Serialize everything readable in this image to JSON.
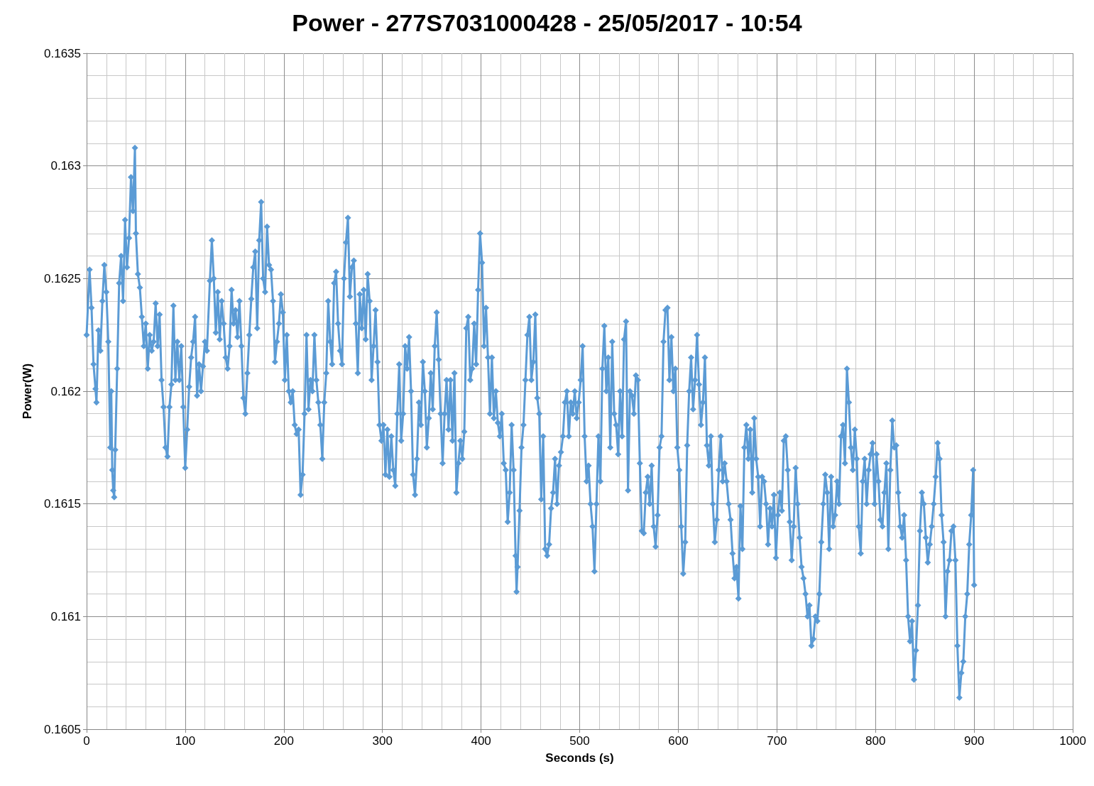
{
  "chart_data": {
    "type": "line",
    "title": "Power - 277S7031000428 - 25/05/2017 - 10:54",
    "xlabel": "Seconds (s)",
    "ylabel": "Power(W)",
    "xlim": [
      0,
      1000
    ],
    "xticks": [
      0,
      100,
      200,
      300,
      400,
      500,
      600,
      700,
      800,
      900,
      1000
    ],
    "ylim": [
      0.1605,
      0.1635
    ],
    "yticks": [
      0.1605,
      0.161,
      0.1615,
      0.162,
      0.1625,
      0.163,
      0.1635
    ],
    "grid": true,
    "marker": "diamond",
    "line_style": "solid",
    "series": [
      {
        "color": "#5b9bd5",
        "x": [
          0,
          3,
          5,
          7,
          9,
          10,
          12,
          14,
          16,
          18,
          20,
          22,
          24,
          25,
          26,
          27,
          28,
          29,
          31,
          33,
          35,
          37,
          39,
          41,
          43,
          45,
          47,
          49,
          50,
          52,
          54,
          56,
          58,
          60,
          62,
          64,
          66,
          68,
          70,
          72,
          74,
          76,
          78,
          80,
          82,
          84,
          86,
          88,
          90,
          92,
          94,
          96,
          98,
          100,
          102,
          104,
          106,
          108,
          110,
          112,
          114,
          116,
          118,
          120,
          122,
          125,
          127,
          129,
          131,
          133,
          135,
          137,
          139,
          141,
          143,
          145,
          147,
          149,
          151,
          153,
          155,
          157,
          159,
          161,
          163,
          165,
          167,
          169,
          171,
          173,
          175,
          177,
          179,
          181,
          183,
          185,
          187,
          189,
          191,
          193,
          195,
          197,
          199,
          201,
          203,
          205,
          207,
          209,
          211,
          213,
          215,
          217,
          219,
          221,
          223,
          225,
          227,
          229,
          231,
          233,
          235,
          237,
          239,
          241,
          243,
          245,
          247,
          249,
          251,
          253,
          255,
          257,
          259,
          261,
          263,
          265,
          267,
          269,
          271,
          273,
          275,
          277,
          279,
          281,
          283,
          285,
          287,
          289,
          291,
          293,
          295,
          297,
          299,
          301,
          303,
          305,
          307,
          309,
          311,
          313,
          315,
          317,
          319,
          321,
          323,
          325,
          327,
          329,
          331,
          333,
          335,
          337,
          339,
          341,
          343,
          345,
          347,
          349,
          351,
          353,
          355,
          357,
          359,
          361,
          363,
          365,
          367,
          369,
          371,
          373,
          375,
          377,
          379,
          381,
          383,
          385,
          387,
          389,
          391,
          393,
          395,
          397,
          399,
          401,
          403,
          405,
          407,
          409,
          411,
          413,
          415,
          417,
          419,
          421,
          423,
          425,
          427,
          429,
          431,
          433,
          435,
          436,
          437,
          439,
          441,
          443,
          445,
          447,
          449,
          451,
          453,
          455,
          457,
          459,
          461,
          463,
          465,
          467,
          469,
          471,
          473,
          475,
          477,
          479,
          481,
          483,
          485,
          487,
          489,
          491,
          493,
          495,
          497,
          499,
          501,
          503,
          505,
          507,
          509,
          511,
          513,
          515,
          517,
          519,
          521,
          523,
          525,
          527,
          529,
          531,
          533,
          535,
          537,
          539,
          541,
          543,
          545,
          547,
          549,
          551,
          553,
          555,
          557,
          559,
          561,
          563,
          565,
          567,
          569,
          571,
          573,
          575,
          577,
          579,
          581,
          583,
          585,
          587,
          589,
          591,
          593,
          595,
          597,
          599,
          601,
          603,
          605,
          607,
          609,
          611,
          613,
          615,
          617,
          619,
          621,
          623,
          625,
          627,
          629,
          631,
          633,
          635,
          637,
          639,
          641,
          643,
          645,
          647,
          649,
          651,
          653,
          655,
          657,
          659,
          661,
          663,
          665,
          667,
          669,
          671,
          673,
          675,
          677,
          679,
          681,
          683,
          685,
          687,
          689,
          691,
          693,
          695,
          697,
          699,
          701,
          703,
          705,
          707,
          709,
          711,
          713,
          715,
          717,
          719,
          721,
          723,
          725,
          727,
          729,
          731,
          733,
          735,
          737,
          739,
          741,
          743,
          745,
          747,
          749,
          751,
          753,
          755,
          757,
          759,
          761,
          763,
          765,
          767,
          769,
          771,
          773,
          775,
          777,
          779,
          781,
          783,
          785,
          787,
          789,
          791,
          793,
          795,
          797,
          799,
          801,
          803,
          805,
          807,
          809,
          811,
          813,
          815,
          817,
          819,
          821,
          823,
          825,
          827,
          829,
          831,
          833,
          835,
          837,
          839,
          841,
          843,
          845,
          847,
          849,
          851,
          853,
          855,
          857,
          859,
          861,
          863,
          865,
          867,
          869,
          871,
          873,
          875,
          877,
          879,
          881,
          883,
          885,
          887,
          889,
          891,
          893,
          895,
          897,
          899,
          900
        ],
        "values": [
          0.16225,
          0.16254,
          0.16237,
          0.16212,
          0.16201,
          0.16195,
          0.16227,
          0.16218,
          0.1624,
          0.16256,
          0.16244,
          0.16222,
          0.16175,
          0.162,
          0.16165,
          0.16156,
          0.16153,
          0.16174,
          0.1621,
          0.16248,
          0.1626,
          0.1624,
          0.16276,
          0.16255,
          0.16268,
          0.16295,
          0.1628,
          0.16308,
          0.1627,
          0.16252,
          0.16246,
          0.16233,
          0.1622,
          0.1623,
          0.1621,
          0.16225,
          0.16218,
          0.16222,
          0.16239,
          0.1622,
          0.16234,
          0.16205,
          0.16193,
          0.16175,
          0.16171,
          0.16193,
          0.16203,
          0.16238,
          0.16205,
          0.16222,
          0.16205,
          0.1622,
          0.16193,
          0.16166,
          0.16183,
          0.16202,
          0.16215,
          0.16222,
          0.16233,
          0.16198,
          0.16212,
          0.162,
          0.16211,
          0.16222,
          0.16218,
          0.16249,
          0.16267,
          0.1625,
          0.16226,
          0.16244,
          0.16223,
          0.1624,
          0.1623,
          0.16215,
          0.1621,
          0.1622,
          0.16245,
          0.1623,
          0.16236,
          0.16224,
          0.1624,
          0.1622,
          0.16197,
          0.1619,
          0.16208,
          0.16225,
          0.16241,
          0.16255,
          0.16262,
          0.16228,
          0.16267,
          0.16284,
          0.1625,
          0.16244,
          0.16273,
          0.16256,
          0.16254,
          0.1624,
          0.16213,
          0.16222,
          0.1623,
          0.16243,
          0.16235,
          0.16205,
          0.16225,
          0.162,
          0.16195,
          0.162,
          0.16185,
          0.16181,
          0.16183,
          0.16154,
          0.16163,
          0.1619,
          0.16225,
          0.16192,
          0.16205,
          0.162,
          0.16225,
          0.16205,
          0.16195,
          0.16185,
          0.1617,
          0.16195,
          0.16208,
          0.1624,
          0.16222,
          0.16212,
          0.16248,
          0.16253,
          0.1623,
          0.16218,
          0.16212,
          0.1625,
          0.16266,
          0.16277,
          0.16242,
          0.16255,
          0.16258,
          0.1623,
          0.16208,
          0.16243,
          0.16228,
          0.16245,
          0.16223,
          0.16252,
          0.1624,
          0.16205,
          0.1622,
          0.16236,
          0.16213,
          0.16185,
          0.16178,
          0.16185,
          0.16163,
          0.16183,
          0.16162,
          0.1618,
          0.16165,
          0.16158,
          0.1619,
          0.16212,
          0.16178,
          0.1619,
          0.1622,
          0.1621,
          0.16224,
          0.162,
          0.16163,
          0.16154,
          0.1617,
          0.16195,
          0.16185,
          0.16213,
          0.162,
          0.16175,
          0.16188,
          0.16208,
          0.16192,
          0.1622,
          0.16235,
          0.16214,
          0.1619,
          0.16168,
          0.1619,
          0.16205,
          0.16183,
          0.16205,
          0.16178,
          0.16208,
          0.16155,
          0.16168,
          0.16178,
          0.1617,
          0.16182,
          0.16228,
          0.16233,
          0.16205,
          0.1621,
          0.1623,
          0.16212,
          0.16245,
          0.1627,
          0.16257,
          0.1622,
          0.16237,
          0.16215,
          0.1619,
          0.16215,
          0.16188,
          0.162,
          0.16186,
          0.1618,
          0.1619,
          0.16168,
          0.16165,
          0.16142,
          0.16155,
          0.16185,
          0.16165,
          0.16127,
          0.16111,
          0.16122,
          0.16147,
          0.16175,
          0.16185,
          0.16205,
          0.16225,
          0.16233,
          0.16205,
          0.16213,
          0.16234,
          0.16197,
          0.1619,
          0.16152,
          0.1618,
          0.1613,
          0.16127,
          0.16132,
          0.16148,
          0.16155,
          0.1617,
          0.1615,
          0.16167,
          0.16173,
          0.1618,
          0.16195,
          0.162,
          0.1618,
          0.16195,
          0.1619,
          0.162,
          0.16188,
          0.16195,
          0.16205,
          0.1622,
          0.1618,
          0.1616,
          0.16167,
          0.1615,
          0.1614,
          0.1612,
          0.1615,
          0.1618,
          0.1616,
          0.1621,
          0.16229,
          0.162,
          0.16215,
          0.16175,
          0.16222,
          0.1619,
          0.16185,
          0.16172,
          0.162,
          0.1618,
          0.16223,
          0.16231,
          0.16156,
          0.162,
          0.16198,
          0.1619,
          0.16207,
          0.16205,
          0.16168,
          0.16138,
          0.16137,
          0.16155,
          0.16162,
          0.1615,
          0.16167,
          0.1614,
          0.16131,
          0.16145,
          0.16175,
          0.1618,
          0.16222,
          0.16236,
          0.16237,
          0.16205,
          0.16224,
          0.162,
          0.1621,
          0.16175,
          0.16165,
          0.1614,
          0.16119,
          0.16133,
          0.16176,
          0.162,
          0.16215,
          0.16192,
          0.16205,
          0.16225,
          0.16203,
          0.16185,
          0.16195,
          0.16215,
          0.16176,
          0.16167,
          0.1618,
          0.1615,
          0.16133,
          0.16143,
          0.16165,
          0.1618,
          0.1616,
          0.16168,
          0.1616,
          0.1615,
          0.16143,
          0.16128,
          0.16117,
          0.16122,
          0.16108,
          0.16149,
          0.1613,
          0.16175,
          0.16185,
          0.1617,
          0.16183,
          0.16155,
          0.16188,
          0.1617,
          0.16162,
          0.1614,
          0.16162,
          0.1616,
          0.1615,
          0.16132,
          0.16148,
          0.1614,
          0.16154,
          0.16126,
          0.16145,
          0.16155,
          0.16147,
          0.16178,
          0.1618,
          0.16165,
          0.16142,
          0.16125,
          0.1614,
          0.16166,
          0.1615,
          0.16135,
          0.16122,
          0.16117,
          0.1611,
          0.161,
          0.16105,
          0.16087,
          0.1609,
          0.161,
          0.16098,
          0.1611,
          0.16133,
          0.1615,
          0.16163,
          0.16155,
          0.1613,
          0.16162,
          0.1614,
          0.16145,
          0.1616,
          0.1615,
          0.1618,
          0.16185,
          0.16168,
          0.1621,
          0.16195,
          0.16175,
          0.16165,
          0.16183,
          0.1617,
          0.1614,
          0.16128,
          0.1616,
          0.1617,
          0.1615,
          0.16165,
          0.16172,
          0.16177,
          0.1615,
          0.16172,
          0.1616,
          0.16143,
          0.1614,
          0.16155,
          0.16168,
          0.1613,
          0.16165,
          0.16187,
          0.16175,
          0.16176,
          0.16155,
          0.1614,
          0.16135,
          0.16145,
          0.16125,
          0.161,
          0.16089,
          0.16098,
          0.16072,
          0.16085,
          0.16105,
          0.16138,
          0.16155,
          0.1615,
          0.16135,
          0.16124,
          0.16132,
          0.1614,
          0.1615,
          0.16162,
          0.16177,
          0.1617,
          0.16145,
          0.16133,
          0.161,
          0.1612,
          0.16125,
          0.16138,
          0.1614,
          0.16125,
          0.16087,
          0.16064,
          0.16075,
          0.1608,
          0.161,
          0.1611,
          0.16132,
          0.16145,
          0.16165,
          0.16114
        ]
      }
    ]
  }
}
